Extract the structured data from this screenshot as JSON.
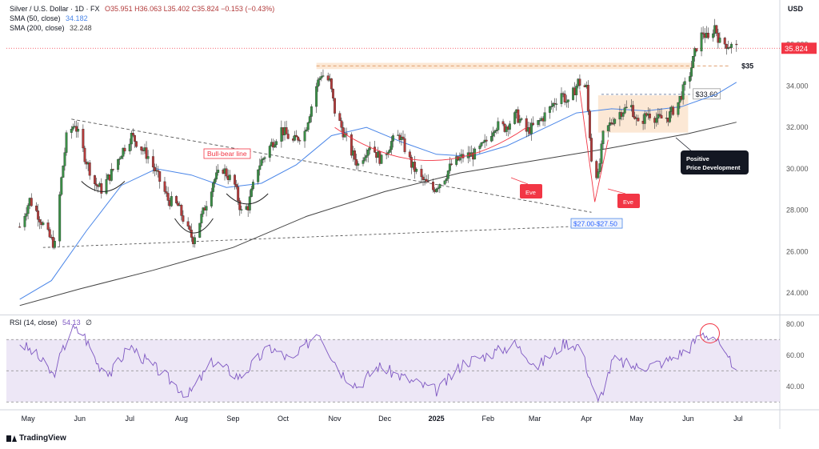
{
  "header": {
    "symbol": "Silver / U.S. Dollar · 1D · FX",
    "ohlc": "O35.951  H36.063  L35.402  C35.824  −0.153 (−0.43%)",
    "sma50_label": "SMA (50, close)",
    "sma50_value": "34.182",
    "sma200_label": "SMA (200, close)",
    "sma200_value": "32.248",
    "rsi_label": "RSI (14, close)",
    "rsi_value": "54.13",
    "rsi_extra": "∅"
  },
  "footer": {
    "brand": "TradingView"
  },
  "colors": {
    "up": "#26a69a",
    "up_body": "#3a8e46",
    "down": "#b23a3a",
    "sma50": "#4a86e8",
    "sma200": "#444444",
    "rsi": "#7e57c2",
    "rsi_band": "#ede7f6",
    "highlight": "#fce8d5",
    "price_label": "#f23645"
  },
  "chart_data": [
    {
      "type": "candlestick",
      "title": "Silver / U.S. Dollar · 1D · FX",
      "currency": "USD",
      "ylim": [
        23,
        38
      ],
      "y_ticks": [
        24,
        26,
        28,
        30,
        32,
        34,
        36
      ],
      "y_tick_labels": [
        "24.000",
        "26.000",
        "28.000",
        "30.000",
        "32.000",
        "34.000",
        "36.000"
      ],
      "x_ticks": [
        "May",
        "Jun",
        "Jul",
        "Aug",
        "Sep",
        "Oct",
        "Nov",
        "Dec",
        "2025",
        "Feb",
        "Mar",
        "Apr",
        "May",
        "Jun",
        "Jul"
      ],
      "last_price": "35.824",
      "price_path": [
        [
          "2024-04-26",
          27.2
        ],
        [
          "2024-05-02",
          28.5
        ],
        [
          "2024-05-07",
          27.8
        ],
        [
          "2024-05-13",
          26.8
        ],
        [
          "2024-05-17",
          26.3
        ],
        [
          "2024-05-21",
          29.5
        ],
        [
          "2024-05-24",
          31.5
        ],
        [
          "2024-05-29",
          32.2
        ],
        [
          "2024-06-04",
          30.6
        ],
        [
          "2024-06-10",
          29.3
        ],
        [
          "2024-06-14",
          29.0
        ],
        [
          "2024-06-20",
          29.8
        ],
        [
          "2024-06-26",
          30.8
        ],
        [
          "2024-07-02",
          31.6
        ],
        [
          "2024-07-08",
          31.0
        ],
        [
          "2024-07-12",
          30.6
        ],
        [
          "2024-07-18",
          29.6
        ],
        [
          "2024-07-24",
          28.5
        ],
        [
          "2024-07-30",
          28.2
        ],
        [
          "2024-08-05",
          27.0
        ],
        [
          "2024-08-08",
          26.6
        ],
        [
          "2024-08-14",
          27.9
        ],
        [
          "2024-08-20",
          29.4
        ],
        [
          "2024-08-26",
          30.0
        ],
        [
          "2024-09-02",
          29.2
        ],
        [
          "2024-09-06",
          27.9
        ],
        [
          "2024-09-10",
          28.2
        ],
        [
          "2024-09-16",
          30.1
        ],
        [
          "2024-09-24",
          31.2
        ],
        [
          "2024-09-30",
          31.9
        ],
        [
          "2024-10-07",
          31.3
        ],
        [
          "2024-10-14",
          31.8
        ],
        [
          "2024-10-21",
          34.0
        ],
        [
          "2024-10-24",
          34.6
        ],
        [
          "2024-10-29",
          34.2
        ],
        [
          "2024-11-01",
          32.8
        ],
        [
          "2024-11-06",
          31.8
        ],
        [
          "2024-11-11",
          30.8
        ],
        [
          "2024-11-15",
          30.2
        ],
        [
          "2024-11-22",
          31.2
        ],
        [
          "2024-11-29",
          30.4
        ],
        [
          "2024-12-05",
          31.3
        ],
        [
          "2024-12-10",
          31.6
        ],
        [
          "2024-12-17",
          30.2
        ],
        [
          "2024-12-23",
          29.5
        ],
        [
          "2024-12-30",
          29.0
        ],
        [
          "2025-01-06",
          29.6
        ],
        [
          "2025-01-10",
          30.2
        ],
        [
          "2025-01-17",
          30.6
        ],
        [
          "2025-01-24",
          30.7
        ],
        [
          "2025-01-30",
          31.2
        ],
        [
          "2025-02-05",
          32.1
        ],
        [
          "2025-02-11",
          32.0
        ],
        [
          "2025-02-18",
          32.6
        ],
        [
          "2025-02-24",
          31.8
        ],
        [
          "2025-03-03",
          32.2
        ],
        [
          "2025-03-10",
          32.9
        ],
        [
          "2025-03-17",
          33.7
        ],
        [
          "2025-03-21",
          33.1
        ],
        [
          "2025-03-27",
          34.2
        ],
        [
          "2025-04-01",
          33.9
        ],
        [
          "2025-04-04",
          30.5
        ],
        [
          "2025-04-08",
          29.6
        ],
        [
          "2025-04-11",
          31.6
        ],
        [
          "2025-04-17",
          32.4
        ],
        [
          "2025-04-22",
          32.8
        ],
        [
          "2025-04-28",
          33.0
        ],
        [
          "2025-05-02",
          32.1
        ],
        [
          "2025-05-08",
          32.7
        ],
        [
          "2025-05-14",
          32.4
        ],
        [
          "2025-05-20",
          32.5
        ],
        [
          "2025-05-26",
          33.2
        ],
        [
          "2025-06-02",
          34.6
        ],
        [
          "2025-06-06",
          35.9
        ],
        [
          "2025-06-10",
          36.6
        ],
        [
          "2025-06-13",
          36.2
        ],
        [
          "2025-06-17",
          36.9
        ],
        [
          "2025-06-20",
          36.1
        ],
        [
          "2025-06-25",
          36.0
        ],
        [
          "2025-06-30",
          35.82
        ]
      ],
      "sma50_path": [
        [
          "2024-04-26",
          23.7
        ],
        [
          "2024-05-15",
          24.6
        ],
        [
          "2024-06-05",
          27.0
        ],
        [
          "2024-06-26",
          29.2
        ],
        [
          "2024-07-17",
          30.0
        ],
        [
          "2024-08-07",
          29.7
        ],
        [
          "2024-08-28",
          29.1
        ],
        [
          "2024-09-18",
          29.3
        ],
        [
          "2024-10-09",
          30.2
        ],
        [
          "2024-10-30",
          31.6
        ],
        [
          "2024-11-20",
          32.0
        ],
        [
          "2024-12-11",
          31.3
        ],
        [
          "2025-01-01",
          30.7
        ],
        [
          "2025-01-22",
          30.6
        ],
        [
          "2025-02-12",
          31.1
        ],
        [
          "2025-03-05",
          31.9
        ],
        [
          "2025-03-26",
          32.7
        ],
        [
          "2025-04-16",
          32.9
        ],
        [
          "2025-05-07",
          32.8
        ],
        [
          "2025-05-28",
          33.0
        ],
        [
          "2025-06-18",
          33.6
        ],
        [
          "2025-06-30",
          34.18
        ]
      ],
      "sma200_path": [
        [
          "2024-04-26",
          23.4
        ],
        [
          "2024-06-01",
          24.2
        ],
        [
          "2024-07-15",
          25.1
        ],
        [
          "2024-09-01",
          26.2
        ],
        [
          "2024-10-15",
          27.7
        ],
        [
          "2024-12-01",
          28.9
        ],
        [
          "2025-01-15",
          29.8
        ],
        [
          "2025-03-01",
          30.4
        ],
        [
          "2025-04-15",
          31.0
        ],
        [
          "2025-06-01",
          31.7
        ],
        [
          "2025-06-30",
          32.25
        ]
      ],
      "levels": [
        {
          "label": "$35",
          "value": 35.0
        },
        {
          "label": "$33.60",
          "value": 33.6
        },
        {
          "label": "$27.00-$27.50",
          "value": 27.25
        }
      ],
      "annotations": [
        {
          "text": "Bull-bear line",
          "kind": "trendline"
        },
        {
          "text": "Eve",
          "kind": "pattern"
        },
        {
          "text": "Eve",
          "kind": "pattern"
        },
        {
          "text": "Positive Price Development",
          "kind": "callout"
        }
      ]
    },
    {
      "type": "line",
      "title": "RSI (14, close)",
      "ylim": [
        25,
        85
      ],
      "y_ticks": [
        40,
        60,
        80
      ],
      "y_tick_labels": [
        "40.00",
        "60.00",
        "80.00"
      ],
      "bands": [
        30,
        50,
        70
      ],
      "last_value": "54.13",
      "rsi_path": [
        [
          "2024-04-26",
          68
        ],
        [
          "2024-05-06",
          60
        ],
        [
          "2024-05-16",
          47
        ],
        [
          "2024-05-27",
          77
        ],
        [
          "2024-06-03",
          74
        ],
        [
          "2024-06-12",
          54
        ],
        [
          "2024-06-20",
          49
        ],
        [
          "2024-07-01",
          66
        ],
        [
          "2024-07-11",
          56
        ],
        [
          "2024-07-22",
          47
        ],
        [
          "2024-08-05",
          34
        ],
        [
          "2024-08-20",
          56
        ],
        [
          "2024-09-05",
          46
        ],
        [
          "2024-09-23",
          65
        ],
        [
          "2024-10-07",
          56
        ],
        [
          "2024-10-22",
          76
        ],
        [
          "2024-11-04",
          50
        ],
        [
          "2024-11-15",
          40
        ],
        [
          "2024-11-27",
          53
        ],
        [
          "2024-12-18",
          43
        ],
        [
          "2025-01-02",
          37
        ],
        [
          "2025-01-17",
          55
        ],
        [
          "2025-02-03",
          61
        ],
        [
          "2025-02-17",
          67
        ],
        [
          "2025-03-03",
          53
        ],
        [
          "2025-03-19",
          68
        ],
        [
          "2025-03-28",
          66
        ],
        [
          "2025-04-08",
          29
        ],
        [
          "2025-04-17",
          57
        ],
        [
          "2025-05-02",
          52
        ],
        [
          "2025-05-19",
          56
        ],
        [
          "2025-06-02",
          65
        ],
        [
          "2025-06-09",
          74
        ],
        [
          "2025-06-17",
          72
        ],
        [
          "2025-06-24",
          57
        ],
        [
          "2025-06-30",
          54
        ]
      ]
    }
  ]
}
